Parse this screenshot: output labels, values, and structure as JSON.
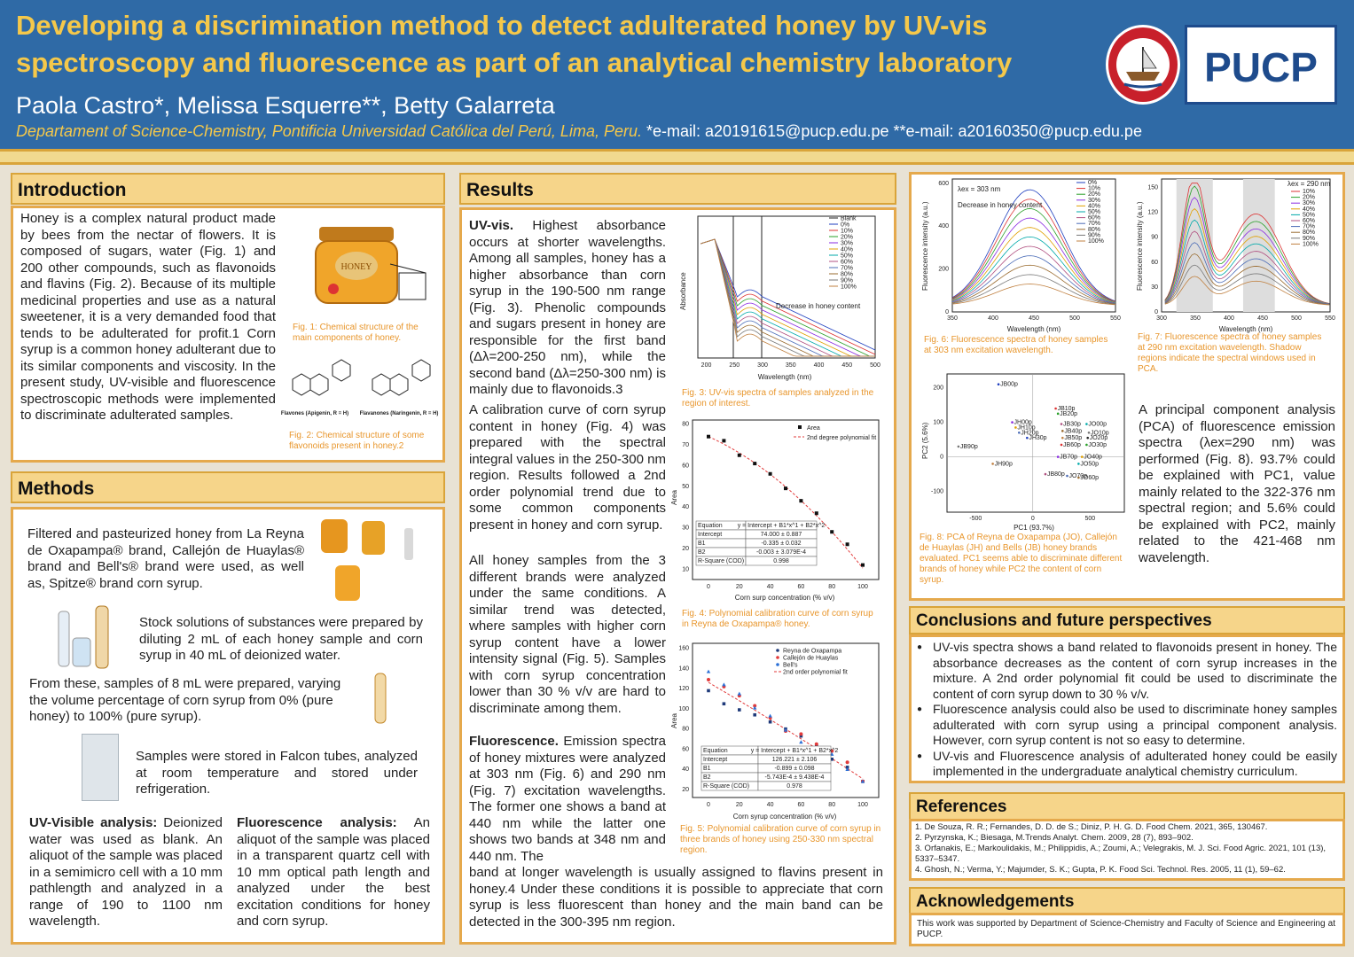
{
  "header": {
    "title": "Developing a discrimination method to detect adulterated honey by UV-vis spectroscopy and fluorescence as part of an analytical chemistry laboratory",
    "authors": "Paola Castro*, Melissa Esquerre**, Betty Galarreta",
    "affiliation": "Departament of Science-Chemistry, Pontificia Universidad Católica del Perú, Lima, Peru.",
    "emails": "*e-mail: a20191615@pucp.edu.pe **e-mail: a20160350@pucp.edu.pe",
    "logo": "PUCP",
    "seal_text": "ET LUX IN TENEBRIS LUCET"
  },
  "intro": {
    "heading": "Introduction",
    "body": "Honey is a complex natural product made by bees from the nectar of flowers. It is composed of sugars, water (Fig. 1) and 200 other compounds, such as flavonoids and flavins (Fig. 2). Because of its multiple medicinal properties and use as a natural sweetener, it is a very demanded food that tends to be adulterated for profit.1 Corn syrup is a common honey adulterant due to its similar components and viscosity. In the present study, UV-visible and fluorescence spectroscopic methods were implemented to discriminate adulterated samples.",
    "fig1_caption": "Fig. 1: Chemical structure of the main components of honey.",
    "fig2_caption": "Fig. 2: Chemical structure of some flavonoids present in honey.2",
    "jar_label": "HONEY",
    "flavones_label": "Flavones (Apigenin, R = H)",
    "flavanones_label": "Flavanones (Naringenin, R = H)"
  },
  "methods": {
    "heading": "Methods",
    "p1": "Filtered and pasteurized honey from La Reyna de Oxapampa® brand, Callejón de Huaylas® brand and Bell's® brand were used, as well as, Spitze® brand corn syrup.",
    "p2": "Stock solutions of substances were prepared by diluting 2 mL of each honey sample and corn syrup in 40 mL of deionized water.",
    "p3": "From these, samples of 8 mL were prepared, varying the volume percentage of corn syrup from 0% (pure honey) to 100% (pure syrup).",
    "p4": "Samples were stored in Falcon tubes, analyzed at room temperature and stored under refrigeration.",
    "uv_title": "UV-Visible analysis:",
    "uv_body": "Deionized water was used as blank. An aliquot of the sample was placed in a semimicro cell with a 10 mm pathlength and analyzed in a range of 190 to 1100 nm wavelength.",
    "fl_title": "Fluorescence analysis:",
    "fl_body": "An aliquot of the sample was placed in a transparent quartz cell with 10 mm optical path length and analyzed under the best excitation conditions for honey and corn syrup."
  },
  "results": {
    "heading": "Results",
    "uv_title": "UV-vis.",
    "uv_p1": "Highest absorbance occurs at shorter wavelengths. Among all samples, honey has a higher absorbance than corn syrup in the 190-500 nm range (Fig. 3). Phenolic compounds and sugars present in honey are responsible for the first band (Δλ=200-250 nm), while the second band (Δλ=250-300 nm) is mainly due to flavonoids.3",
    "uv_p2": "A calibration curve of corn syrup content in honey (Fig. 4) was prepared with the spectral integral values in the 250-300 nm region. Results followed a 2nd order polynomial trend due to some common components present in honey and corn syrup.",
    "uv_p3": "All honey samples from the 3 different brands were analyzed under the same conditions. A similar trend was detected, where samples with higher corn syrup content have a lower intensity signal (Fig. 5). Samples with corn syrup concentration lower than 30 % v/v are hard to discriminate among them.",
    "fl_title": "Fluorescence.",
    "fl_p1": "Emission spectra of honey mixtures were analyzed at 303 nm (Fig. 6) and 290 nm (Fig. 7) excitation wavelengths. The former one shows a band at 440 nm while the latter one shows two bands at 348 nm and 440 nm. The",
    "fl_p2": "band at longer wavelength is usually assigned to flavins present in honey.4 Under these conditions it is possible to appreciate that corn syrup is less fluorescent than honey and the main band can be detected in the 300-395 nm region.",
    "fig3_caption": "Fig. 3: UV-vis spectra of samples analyzed in the region of interest.",
    "fig4_caption": "Fig. 4: Polynomial calibration curve of corn syrup in Reyna de Oxapampa® honey.",
    "fig5_caption": "Fig. 5: Polynomial calibration curve of corn syrup in three brands of honey using 250-330 nm spectral region."
  },
  "right": {
    "fig6_caption": "Fig. 6: Fluorescence spectra of honey samples at 303 nm excitation wavelength.",
    "fig7_caption": "Fig. 7: Fluorescence spectra of honey samples at 290 nm excitation wavelength. Shadow regions indicate the spectral windows used in PCA.",
    "fig8_caption": "Fig. 8: PCA of Reyna de Oxapampa (JO), Callejón de Huaylas (JH) and Bells (JB) honey brands evaluated. PC1 seems able to discriminate different brands of honey while PC2 the content of corn syrup.",
    "pca_text": "A principal component analysis (PCA) of fluorescence emission spectra (λex=290 nm) was performed (Fig. 8). 93.7% could be explained with PC1, value mainly related to the 322-376 nm spectral region; and 5.6% could be explained with PC2, mainly related to the 421-468 nm wavelength."
  },
  "conclusions": {
    "heading": "Conclusions and future perspectives",
    "items": [
      "UV-vis spectra shows a band related to flavonoids present in honey. The absorbance decreases as the content of corn syrup increases in the mixture. A 2nd order polynomial fit could be used to discriminate the content of corn syrup down to 30 % v/v.",
      "Fluorescence analysis could also be used to discriminate honey samples adulterated with corn syrup using a principal component analysis. However, corn syrup content is not so easy to determine.",
      "UV-vis and Fluorescence analysis of adulterated honey could be easily implemented in the undergraduate analytical chemistry curriculum."
    ]
  },
  "references": {
    "heading": "References",
    "items": [
      "1. De Souza, R. R.; Fernandes, D. D. de S.; Diniz, P. H. G. D. Food Chem. 2021, 365, 130467.",
      "2. Pyrzynska, K.; Biesaga, M.Trends Analyt. Chem. 2009, 28 (7), 893–902.",
      "3. Orfanakis, E.; Markoulidakis, M.; Philippidis, A.; Zoumi, A.; Velegrakis, M. J. Sci. Food Agric. 2021, 101 (13), 5337–5347.",
      "4. Ghosh, N.; Verma, Y.; Majumder, S. K.; Gupta, P. K. Food Sci. Technol. Res. 2005, 11 (1), 59–62."
    ]
  },
  "acknowledgements": {
    "heading": "Acknowledgements",
    "body": "This work was supported by Department of Science-Chemistry and Faculty of Science and Engineering at PUCP."
  },
  "chart_data": [
    {
      "type": "line",
      "figure": "Fig. 3",
      "xlabel": "Wavelength (nm)",
      "ylabel": "Absorbance",
      "x_ticks": [
        200,
        250,
        300,
        350,
        400,
        450,
        500
      ],
      "legend": [
        "Blank",
        "0%",
        "10%",
        "20%",
        "30%",
        "40%",
        "50%",
        "60%",
        "70%",
        "80%",
        "90%",
        "100%"
      ],
      "annotation": "Decrease in honey content"
    },
    {
      "type": "scatter",
      "figure": "Fig. 4",
      "xlabel": "Corn surp concentration (% v/v)",
      "ylabel": "Area",
      "ylim": [
        10,
        80
      ],
      "xlim": [
        0,
        100
      ],
      "x": [
        0,
        10,
        20,
        30,
        40,
        50,
        60,
        70,
        80,
        90,
        100
      ],
      "y": [
        74,
        72,
        65,
        61,
        56,
        49,
        43,
        37,
        28,
        22,
        12
      ],
      "legend": [
        "Area",
        "2nd degree polynomial fit"
      ],
      "table": [
        [
          "Equation",
          "y = Intercept + B1*x^1 + B2*x^2"
        ],
        [
          "Intercept",
          "74.000 ± 0.887"
        ],
        [
          "B1",
          "-0.335 ± 0.032"
        ],
        [
          "B2",
          "-0.003 ± 3.079E-4"
        ],
        [
          "R-Square (COD)",
          "0.998"
        ]
      ]
    },
    {
      "type": "scatter",
      "figure": "Fig. 5",
      "xlabel": "Corn syrup concentration (% v/v)",
      "ylabel": "Area",
      "ylim": [
        20,
        160
      ],
      "xlim": [
        0,
        100
      ],
      "x": [
        0,
        10,
        20,
        30,
        40,
        50,
        60,
        70,
        80,
        90,
        100
      ],
      "series": [
        {
          "name": "Reyna de Oxapampa",
          "values": [
            118,
            105,
            99,
            94,
            87,
            80,
            73,
            63,
            50,
            42,
            28
          ]
        },
        {
          "name": "Callejón de Huaylas",
          "values": [
            129,
            122,
            113,
            103,
            91,
            78,
            75,
            65,
            58,
            47,
            28
          ]
        },
        {
          "name": "Bell's",
          "values": [
            137,
            124,
            115,
            101,
            93,
            79,
            67,
            60,
            55,
            40,
            28
          ]
        }
      ],
      "legend_fit": "2nd order polynomial fit",
      "table": [
        [
          "Equation",
          "y = Intercept + B1*x^1 + B2*x^2"
        ],
        [
          "Intercept",
          "126.221 ± 2.106"
        ],
        [
          "B1",
          "-0.899 ± 0.098"
        ],
        [
          "B2",
          "-5.743E-4 ± 9.438E-4"
        ],
        [
          "R-Square (COD)",
          "0.978"
        ]
      ]
    },
    {
      "type": "line",
      "figure": "Fig. 6",
      "xlabel": "Wavelength (nm)",
      "ylabel": "Fluorescence intensity (a.u.)",
      "x_ticks": [
        350,
        400,
        450,
        500,
        550
      ],
      "y_ticks": [
        0,
        200,
        400,
        600
      ],
      "annotation": "λex = 303 nm",
      "annotation2": "Decrease in honey content",
      "legend": [
        "0%",
        "10%",
        "20%",
        "30%",
        "40%",
        "50%",
        "60%",
        "70%",
        "80%",
        "90%",
        "100%"
      ]
    },
    {
      "type": "line",
      "figure": "Fig. 7",
      "xlabel": "Wavelength (nm)",
      "ylabel": "Fluorescence intensity (a.u.)",
      "x_ticks": [
        300,
        350,
        400,
        450,
        500,
        550
      ],
      "y_ticks": [
        0,
        30,
        60,
        90,
        120,
        150
      ],
      "annotation": "λex = 290 nm",
      "legend": [
        "10%",
        "20%",
        "30%",
        "40%",
        "50%",
        "60%",
        "70%",
        "80%",
        "90%",
        "100%"
      ]
    },
    {
      "type": "scatter",
      "figure": "Fig. 8",
      "xlabel": "PC1 (93.7%)",
      "ylabel": "PC2 (5.6%)",
      "x_ticks": [
        -500,
        0,
        500
      ],
      "y_ticks": [
        -100,
        0,
        100,
        200
      ],
      "points": [
        {
          "label": "JB00p",
          "x": -300,
          "y": 210
        },
        {
          "label": "JB10p",
          "x": 200,
          "y": 140
        },
        {
          "label": "JB20p",
          "x": 220,
          "y": 125
        },
        {
          "label": "JH00p",
          "x": -180,
          "y": 100
        },
        {
          "label": "JH10p",
          "x": -150,
          "y": 85
        },
        {
          "label": "JO00p",
          "x": 470,
          "y": 95
        },
        {
          "label": "JB30p",
          "x": 250,
          "y": 95
        },
        {
          "label": "JH20p",
          "x": -120,
          "y": 70
        },
        {
          "label": "JB40p",
          "x": 260,
          "y": 75
        },
        {
          "label": "JO10p",
          "x": 490,
          "y": 70
        },
        {
          "label": "JB50p",
          "x": 260,
          "y": 55
        },
        {
          "label": "JO20p",
          "x": 480,
          "y": 55
        },
        {
          "label": "JH30p",
          "x": -50,
          "y": 55
        },
        {
          "label": "JB60p",
          "x": 250,
          "y": 35
        },
        {
          "label": "JO30p",
          "x": 470,
          "y": 35
        },
        {
          "label": "JB70p",
          "x": 220,
          "y": 0
        },
        {
          "label": "JO40p",
          "x": 430,
          "y": 0
        },
        {
          "label": "JO50p",
          "x": 400,
          "y": -20
        },
        {
          "label": "JB80p",
          "x": 110,
          "y": -50
        },
        {
          "label": "JO70p",
          "x": 300,
          "y": -55
        },
        {
          "label": "JO60p",
          "x": 400,
          "y": -60
        },
        {
          "label": "JB90p",
          "x": -650,
          "y": 30
        },
        {
          "label": "JH90p",
          "x": -350,
          "y": -20
        }
      ]
    }
  ]
}
